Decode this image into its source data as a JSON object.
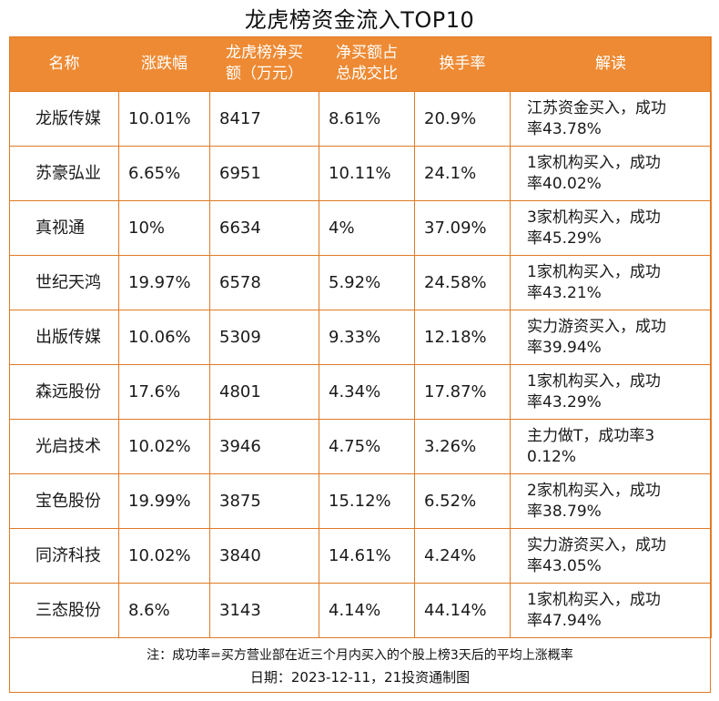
{
  "title": "龙虎榜资金流入TOP10",
  "headers": {
    "name": "名称",
    "change": "涨跌幅",
    "net_buy_line1": "龙虎榜净买",
    "net_buy_line2": "额（万元）",
    "ratio_line1": "净买额占",
    "ratio_line2": "总成交比",
    "turnover": "换手率",
    "interp": "解读"
  },
  "rows": [
    {
      "name": "龙版传媒",
      "change": "10.01%",
      "net_buy": "8417",
      "ratio": "8.61%",
      "turnover": "20.9%",
      "interp_line1": "江苏资金买入，成功",
      "interp_line2": "率43.78%"
    },
    {
      "name": "苏豪弘业",
      "change": "6.65%",
      "net_buy": "6951",
      "ratio": "10.11%",
      "turnover": "24.1%",
      "interp_line1": "1家机构买入，成功",
      "interp_line2": "率40.02%"
    },
    {
      "name": "真视通",
      "change": "10%",
      "net_buy": "6634",
      "ratio": "4%",
      "turnover": "37.09%",
      "interp_line1": "3家机构买入，成功",
      "interp_line2": "率45.29%"
    },
    {
      "name": "世纪天鸿",
      "change": "19.97%",
      "net_buy": "6578",
      "ratio": "5.92%",
      "turnover": "24.58%",
      "interp_line1": "1家机构买入，成功",
      "interp_line2": "率43.21%"
    },
    {
      "name": "出版传媒",
      "change": "10.06%",
      "net_buy": "5309",
      "ratio": "9.33%",
      "turnover": "12.18%",
      "interp_line1": "实力游资买入，成功",
      "interp_line2": "率39.94%"
    },
    {
      "name": "森远股份",
      "change": "17.6%",
      "net_buy": "4801",
      "ratio": "4.34%",
      "turnover": "17.87%",
      "interp_line1": "1家机构买入，成功",
      "interp_line2": "率43.29%"
    },
    {
      "name": "光启技术",
      "change": "10.02%",
      "net_buy": "3946",
      "ratio": "4.75%",
      "turnover": "3.26%",
      "interp_line1": "主力做T，成功率3",
      "interp_line2": "0.12%"
    },
    {
      "name": "宝色股份",
      "change": "19.99%",
      "net_buy": "3875",
      "ratio": "15.12%",
      "turnover": "6.52%",
      "interp_line1": "2家机构买入，成功",
      "interp_line2": "率38.79%"
    },
    {
      "name": "同济科技",
      "change": "10.02%",
      "net_buy": "3840",
      "ratio": "14.61%",
      "turnover": "4.24%",
      "interp_line1": "实力游资买入，成功",
      "interp_line2": "率43.05%"
    },
    {
      "name": "三态股份",
      "change": "8.6%",
      "net_buy": "3143",
      "ratio": "4.14%",
      "turnover": "44.14%",
      "interp_line1": "1家机构买入，成功",
      "interp_line2": "率47.94%"
    }
  ],
  "footer": {
    "note": "注：成功率=买方营业部在近三个月内买入的个股上榜3天后的平均上涨概率",
    "date": "日期：2023-12-11，21投资通制图"
  },
  "colors": {
    "header_bg": "#ee8a33",
    "border": "#e07a25"
  }
}
